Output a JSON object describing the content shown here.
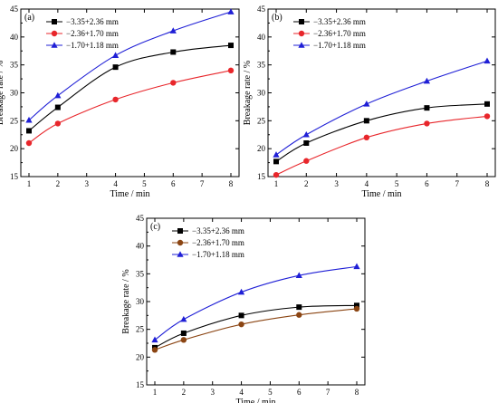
{
  "chart_data": [
    {
      "type": "line",
      "panel_label": "(a)",
      "xlabel": "Time / min",
      "ylabel": "Breakage rate / %",
      "xlim": [
        1,
        8
      ],
      "ylim": [
        15,
        45
      ],
      "xticks": [
        1,
        2,
        3,
        4,
        5,
        6,
        7,
        8
      ],
      "yticks": [
        15,
        20,
        25,
        30,
        35,
        40,
        45
      ],
      "legend_position": "top-left",
      "series": [
        {
          "name": "−3.35+2.36 mm",
          "color": "#000000",
          "marker": "square",
          "x": [
            1,
            2,
            4,
            6,
            8
          ],
          "y": [
            23.2,
            27.4,
            34.6,
            37.3,
            38.5
          ]
        },
        {
          "name": "−2.36+1.70 mm",
          "color": "#e8262b",
          "marker": "circle",
          "x": [
            1,
            2,
            4,
            6,
            8
          ],
          "y": [
            21.0,
            24.5,
            28.8,
            31.8,
            34.0
          ]
        },
        {
          "name": "−1.70+1.18 mm",
          "color": "#1f1fd6",
          "marker": "triangle",
          "x": [
            1,
            2,
            4,
            6,
            8
          ],
          "y": [
            25.1,
            29.5,
            36.7,
            41.1,
            44.5
          ]
        }
      ]
    },
    {
      "type": "line",
      "panel_label": "(b)",
      "xlabel": "Time / min",
      "ylabel": "Breakage rate / %",
      "xlim": [
        1,
        8
      ],
      "ylim": [
        15,
        45
      ],
      "xticks": [
        1,
        2,
        3,
        4,
        5,
        6,
        7,
        8
      ],
      "yticks": [
        15,
        20,
        25,
        30,
        35,
        40,
        45
      ],
      "legend_position": "top-left",
      "series": [
        {
          "name": "−3.35+2.36 mm",
          "color": "#000000",
          "marker": "square",
          "x": [
            1,
            2,
            4,
            6,
            8
          ],
          "y": [
            17.7,
            21.0,
            25.0,
            27.3,
            28.0
          ]
        },
        {
          "name": "−2.36+1.70 mm",
          "color": "#e8262b",
          "marker": "circle",
          "x": [
            1,
            2,
            4,
            6,
            8
          ],
          "y": [
            15.3,
            17.8,
            22.0,
            24.5,
            25.8
          ]
        },
        {
          "name": "−1.70+1.18 mm",
          "color": "#1f1fd6",
          "marker": "triangle",
          "x": [
            1,
            2,
            4,
            6,
            8
          ],
          "y": [
            18.9,
            22.5,
            28.0,
            32.1,
            35.7
          ]
        }
      ]
    },
    {
      "type": "line",
      "panel_label": "(c)",
      "xlabel": "Time / min",
      "ylabel": "Breakage rate / %",
      "xlim": [
        1,
        8
      ],
      "ylim": [
        15,
        45
      ],
      "xticks": [
        1,
        2,
        3,
        4,
        5,
        6,
        7,
        8
      ],
      "yticks": [
        15,
        20,
        25,
        30,
        35,
        40,
        45
      ],
      "legend_position": "top-left",
      "series": [
        {
          "name": "−3.35+2.36 mm",
          "color": "#000000",
          "marker": "square",
          "x": [
            1,
            2,
            4,
            6,
            8
          ],
          "y": [
            21.7,
            24.3,
            27.5,
            29.0,
            29.3
          ]
        },
        {
          "name": "−2.36+1.70 mm",
          "color": "#8b4513",
          "marker": "circle",
          "x": [
            1,
            2,
            4,
            6,
            8
          ],
          "y": [
            21.3,
            23.1,
            25.9,
            27.6,
            28.7
          ]
        },
        {
          "name": "−1.70+1.18 mm",
          "color": "#1f1fd6",
          "marker": "triangle",
          "x": [
            1,
            2,
            4,
            6,
            8
          ],
          "y": [
            23.1,
            26.8,
            31.7,
            34.7,
            36.3
          ]
        }
      ]
    }
  ]
}
